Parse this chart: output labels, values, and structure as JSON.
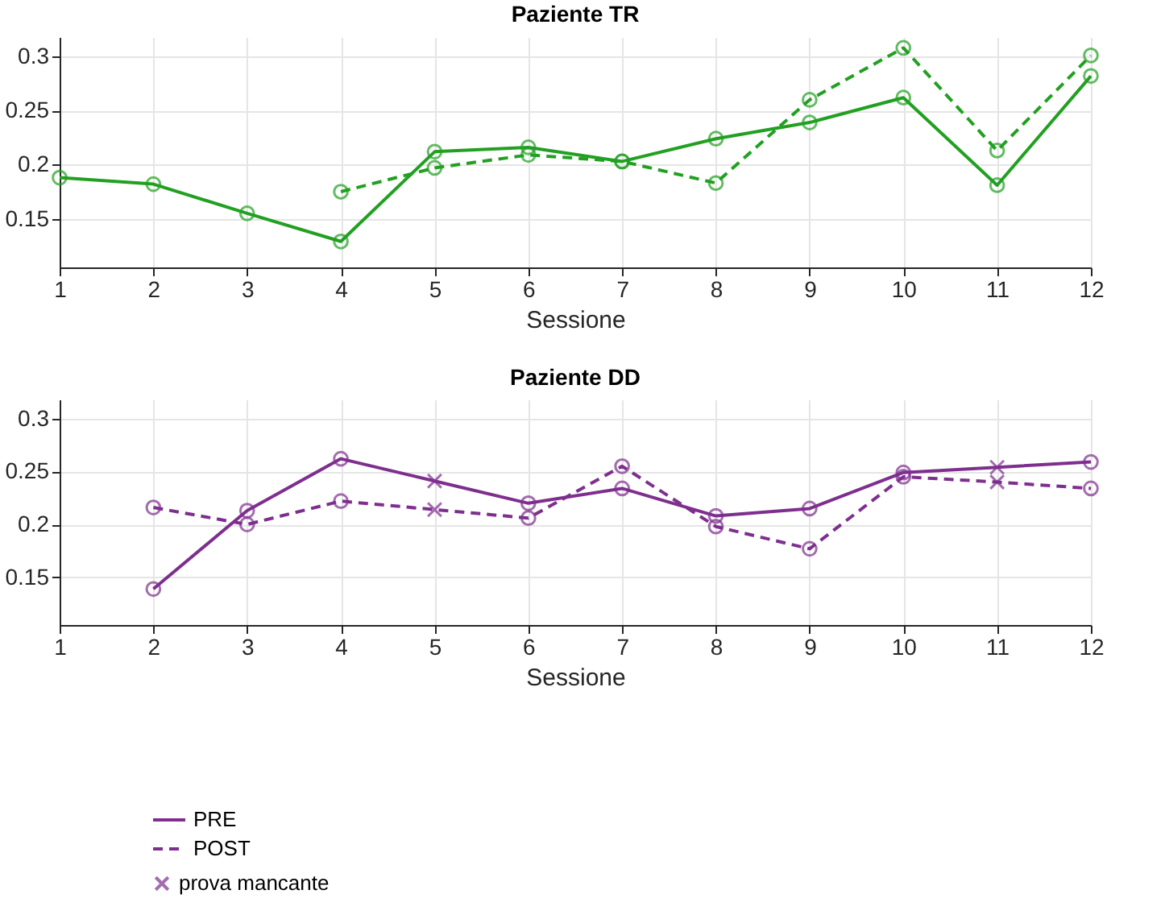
{
  "chart_data": [
    {
      "type": "line",
      "title": "Paziente TR",
      "xlabel": "Sessione",
      "xlim": [
        1,
        12
      ],
      "xticks": [
        1,
        2,
        3,
        4,
        5,
        6,
        7,
        8,
        9,
        10,
        11,
        12
      ],
      "ylim": [
        0.105,
        0.318
      ],
      "yticks": [
        0.15,
        0.2,
        0.25,
        0.3
      ],
      "grid": true,
      "legend": false,
      "series": [
        {
          "type": "line",
          "line_style": "solid",
          "marker": "none",
          "color": "#21a021",
          "x": [
            1,
            2,
            3,
            4,
            5,
            6,
            7,
            8,
            9,
            10,
            11,
            12
          ],
          "values": [
            0.188,
            0.182,
            0.155,
            0.129,
            0.212,
            0.216,
            0.203,
            0.224,
            0.239,
            0.262,
            0.181,
            0.282
          ]
        },
        {
          "type": "line",
          "line_style": "dashed",
          "marker": "none",
          "color": "#21a021",
          "x": [
            4,
            5,
            6,
            7,
            8,
            9,
            10,
            11,
            12
          ],
          "values": [
            0.175,
            0.197,
            0.209,
            0.203,
            0.183,
            0.26,
            0.308,
            0.213,
            0.301
          ]
        },
        {
          "type": "scatter",
          "marker": "circle",
          "color": "#21a021",
          "x": [
            1,
            2,
            3,
            4,
            5,
            6,
            7,
            8,
            9,
            10,
            11,
            12
          ],
          "values": [
            0.188,
            0.182,
            0.155,
            0.129,
            0.212,
            0.216,
            0.203,
            0.224,
            0.239,
            0.262,
            0.181,
            0.282
          ]
        },
        {
          "type": "scatter",
          "marker": "circle",
          "color": "#21a021",
          "x": [
            4,
            5,
            6,
            7,
            8,
            9,
            10,
            11,
            12
          ],
          "values": [
            0.175,
            0.197,
            0.209,
            0.203,
            0.183,
            0.26,
            0.308,
            0.213,
            0.301
          ]
        }
      ]
    },
    {
      "type": "line",
      "title": "Paziente DD",
      "xlabel": "Sessione",
      "xlim": [
        1,
        12
      ],
      "xticks": [
        1,
        2,
        3,
        4,
        5,
        6,
        7,
        8,
        9,
        10,
        11,
        12
      ],
      "ylim": [
        0.105,
        0.318
      ],
      "yticks": [
        0.15,
        0.2,
        0.25,
        0.3
      ],
      "grid": true,
      "legend": "bottom left",
      "series": [
        {
          "name": "PRE",
          "type": "line",
          "line_style": "solid",
          "marker": "none",
          "color": "#7e2f8e",
          "x": [
            2,
            3,
            4,
            5,
            6,
            7,
            8,
            9,
            10,
            11,
            12
          ],
          "values": [
            0.139,
            0.213,
            0.262,
            0.241,
            0.22,
            0.234,
            0.208,
            0.215,
            0.249,
            0.254,
            0.259
          ]
        },
        {
          "name": "POST",
          "type": "line",
          "line_style": "dashed",
          "marker": "none",
          "color": "#7e2f8e",
          "x": [
            2,
            3,
            4,
            5,
            6,
            7,
            8,
            9,
            10,
            11,
            12
          ],
          "values": [
            0.216,
            0.2,
            0.222,
            0.214,
            0.206,
            0.255,
            0.198,
            0.177,
            0.245,
            0.24,
            0.234
          ]
        },
        {
          "type": "scatter",
          "marker": "circle",
          "color": "#7e2f8e",
          "x": [
            2,
            3,
            4,
            6,
            7,
            8,
            9,
            10,
            12
          ],
          "values": [
            0.139,
            0.213,
            0.262,
            0.22,
            0.234,
            0.208,
            0.215,
            0.249,
            0.259
          ]
        },
        {
          "type": "scatter",
          "marker": "circle",
          "color": "#7e2f8e",
          "x": [
            2,
            3,
            4,
            6,
            7,
            8,
            9,
            10,
            12
          ],
          "values": [
            0.216,
            0.2,
            0.222,
            0.206,
            0.255,
            0.198,
            0.177,
            0.245,
            0.234
          ]
        },
        {
          "name": "prova mancante",
          "type": "scatter",
          "marker": "cross",
          "color": "#7e2f8e",
          "x": [
            5,
            11,
            5,
            11
          ],
          "values": [
            0.241,
            0.254,
            0.214,
            0.24
          ]
        }
      ]
    }
  ]
}
